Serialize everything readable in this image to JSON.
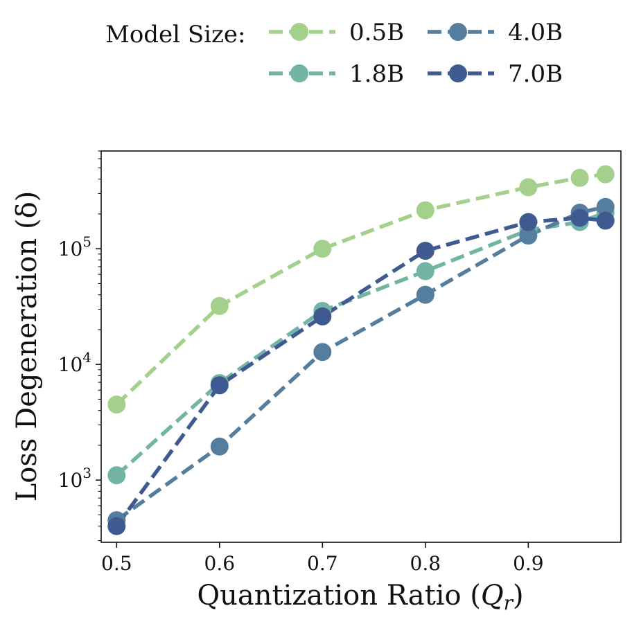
{
  "chart_data": {
    "type": "line",
    "xlabel": "Quantization Ratio (Q_r)",
    "xlabel_main": "Quantization Ratio (",
    "xlabel_sym": "Q",
    "xlabel_sub": "r",
    "xlabel_close": ")",
    "ylabel": "Loss Degeneration (δ)",
    "yscale": "log",
    "xlim": [
      0.485,
      0.99
    ],
    "ylim": [
      290,
      700000
    ],
    "xticks": [
      0.5,
      0.6,
      0.7,
      0.8,
      0.9
    ],
    "xtick_labels": [
      "0.5",
      "0.6",
      "0.7",
      "0.8",
      "0.9"
    ],
    "yticks": [
      1000,
      10000,
      100000
    ],
    "ytick_base": "10",
    "ytick_exponents": [
      "3",
      "4",
      "5"
    ],
    "legend_title": "Model Size:",
    "legend_position": "top",
    "x": [
      0.5,
      0.6,
      0.7,
      0.8,
      0.9,
      0.95,
      0.975
    ],
    "series": [
      {
        "name": "0.5B",
        "color": "#a3d18b",
        "values": [
          4500,
          32000,
          100000,
          215000,
          340000,
          410000,
          440000
        ]
      },
      {
        "name": "1.8B",
        "color": "#72b5a5",
        "values": [
          1100,
          6900,
          29000,
          64000,
          145000,
          170000,
          205000
        ]
      },
      {
        "name": "4.0B",
        "color": "#557e9e",
        "values": [
          450,
          1950,
          12800,
          40000,
          130000,
          205000,
          230000
        ]
      },
      {
        "name": "7.0B",
        "color": "#3e5a91",
        "values": [
          400,
          6600,
          26000,
          96000,
          170000,
          185000,
          175000
        ]
      }
    ]
  }
}
